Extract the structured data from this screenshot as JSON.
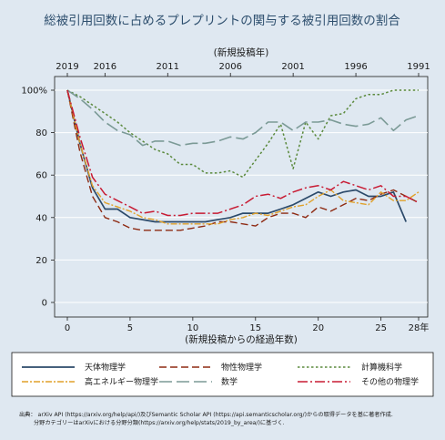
{
  "chart_data": {
    "type": "line",
    "title": "総被引用回数に占めるプレプリントの関与する被引用回数の割合",
    "xlabel": "(新規投稿からの経過年数)",
    "x_top_label": "(新規投稿年)",
    "ylim": [
      0,
      100
    ],
    "xlim": [
      0,
      28
    ],
    "x_ticks": [
      {
        "value": 0,
        "label": "0"
      },
      {
        "value": 5,
        "label": "5"
      },
      {
        "value": 10,
        "label": "10"
      },
      {
        "value": 15,
        "label": "15"
      },
      {
        "value": 20,
        "label": "20"
      },
      {
        "value": 25,
        "label": "25"
      },
      {
        "value": 28,
        "label": "28年"
      }
    ],
    "x_top_ticks": [
      {
        "value": 0,
        "label": "2019"
      },
      {
        "value": 3,
        "label": "2016"
      },
      {
        "value": 8,
        "label": "2011"
      },
      {
        "value": 13,
        "label": "2006"
      },
      {
        "value": 18,
        "label": "2001"
      },
      {
        "value": 23,
        "label": "1996"
      },
      {
        "value": 28,
        "label": "1991"
      }
    ],
    "y_ticks": [
      {
        "value": 0,
        "label": "0"
      },
      {
        "value": 20,
        "label": "20"
      },
      {
        "value": 40,
        "label": "40"
      },
      {
        "value": 60,
        "label": "60"
      },
      {
        "value": 80,
        "label": "80"
      },
      {
        "value": 100,
        "label": "100%"
      }
    ],
    "grid": true,
    "legend_position": "bottom",
    "x": [
      0,
      1,
      2,
      3,
      4,
      5,
      6,
      7,
      8,
      9,
      10,
      11,
      12,
      13,
      14,
      15,
      16,
      17,
      18,
      19,
      20,
      21,
      22,
      23,
      24,
      25,
      26,
      27,
      28
    ],
    "series": [
      {
        "name": "天体物理学",
        "color": "#2c4a6a",
        "dash": "",
        "width": 1.7,
        "values": [
          100,
          75,
          54,
          44,
          44,
          40,
          39,
          38,
          38,
          38,
          38,
          38,
          39,
          40,
          42,
          42,
          42,
          44,
          46,
          49,
          52,
          50,
          52,
          53,
          50,
          50,
          52,
          38,
          null
        ]
      },
      {
        "name": "物性物理学",
        "color": "#8e2a12",
        "dash": "8,4",
        "width": 1.4,
        "values": [
          100,
          71,
          50,
          40,
          38,
          35,
          34,
          34,
          34,
          34,
          35,
          36,
          38,
          38,
          37,
          36,
          40,
          42,
          42,
          40,
          45,
          43,
          46,
          49,
          48,
          51,
          53,
          50,
          47
        ]
      },
      {
        "name": "計算機科学",
        "color": "#5b8a3d",
        "dash": "2.5,2.5",
        "width": 1.5,
        "values": [
          100,
          97,
          93,
          89,
          85,
          80,
          76,
          72,
          70,
          65,
          65,
          61,
          61,
          62,
          59,
          67,
          75,
          84,
          63,
          85,
          77,
          88,
          89,
          96,
          98,
          98,
          100,
          100,
          100
        ]
      },
      {
        "name": "高エネルギー物理学",
        "color": "#e0a12a",
        "dash": "7,2,2,2",
        "width": 1.4,
        "values": [
          100,
          75,
          55,
          47,
          45,
          43,
          40,
          39,
          37,
          37,
          37,
          37,
          37,
          39,
          40,
          42,
          41,
          43,
          45,
          46,
          50,
          53,
          48,
          47,
          46,
          52,
          48,
          48,
          52
        ]
      },
      {
        "name": "数学",
        "color": "#7b9a96",
        "dash": "14,5",
        "width": 1.6,
        "values": [
          100,
          96,
          91,
          85,
          81,
          79,
          74,
          76,
          76,
          74,
          75,
          75,
          76,
          78,
          77,
          80,
          85,
          85,
          81,
          85,
          85,
          86,
          84,
          83,
          84,
          87,
          81,
          86,
          88
        ]
      },
      {
        "name": "その他の物理学",
        "color": "#c81b33",
        "dash": "11,3,2,3",
        "width": 1.5,
        "values": [
          100,
          78,
          59,
          51,
          48,
          45,
          42,
          43,
          41,
          41,
          42,
          42,
          42,
          44,
          46,
          50,
          51,
          49,
          52,
          54,
          55,
          53,
          57,
          55,
          53,
          55,
          50,
          50,
          47
        ]
      }
    ],
    "source_lines": [
      "出典： arXiv API (https://arxiv.org/help/api/)及びSemantic Scholar API (https://api.semanticscholar.org/)からの取得データを基に著者作成.",
      "分野カテゴリーはarXivにおける分野分類(https://arxiv.org/help/stats/2019_by_area/)に基づく."
    ]
  }
}
